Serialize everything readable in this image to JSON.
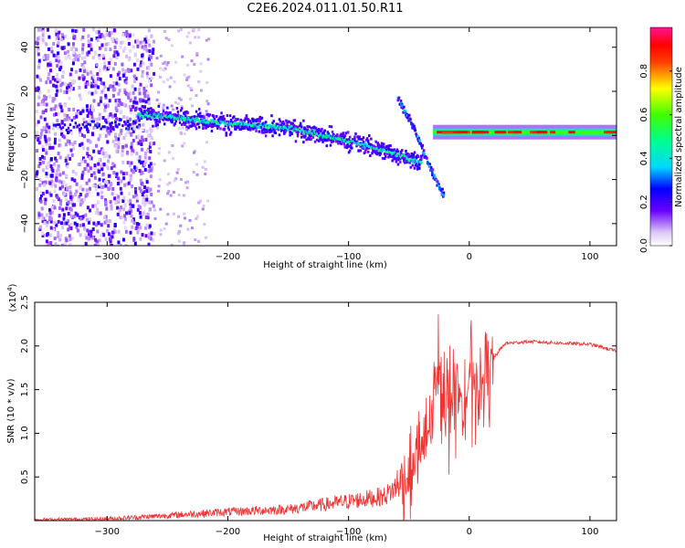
{
  "title": "C2E6.2024.011.01.50.R11",
  "chart_data": [
    {
      "type": "heatmap",
      "xlabel": "Height of straight line (km)",
      "ylabel": "Frequency (Hz)",
      "xlim": [
        -360,
        122
      ],
      "ylim": [
        -50,
        49
      ],
      "xticks": [
        -300,
        -200,
        -100,
        0,
        100
      ],
      "yticks": [
        -40,
        -20,
        0,
        20,
        40
      ],
      "colorbar": {
        "label": "Normalized spectral amplitude",
        "range": [
          0.0,
          1.0
        ],
        "ticks": [
          0.0,
          0.2,
          0.4,
          0.6,
          0.8
        ]
      },
      "features": {
        "noise_region_x": [
          -360,
          -262
        ],
        "main_trace": [
          [
            -275,
            10
          ],
          [
            -250,
            9
          ],
          [
            -200,
            6
          ],
          [
            -150,
            4
          ],
          [
            -100,
            -2
          ],
          [
            -60,
            -8
          ],
          [
            -40,
            -12
          ]
        ],
        "secondary_trace": [
          [
            -60,
            18
          ],
          [
            -45,
            2
          ],
          [
            -35,
            -12
          ],
          [
            -22,
            -27
          ]
        ],
        "strong_line": {
          "x_range": [
            -30,
            122
          ],
          "frequency": 1.5
        }
      }
    },
    {
      "type": "line",
      "xlabel": "Height of straight line (km)",
      "ylabel": "SNR (10 * v/v)",
      "y_multiplier": "(x10^4)",
      "xlim": [
        -360,
        122
      ],
      "ylim": [
        0,
        2.5
      ],
      "xticks": [
        -300,
        -200,
        -100,
        0,
        100
      ],
      "yticks": [
        0.5,
        1.0,
        1.5,
        2.0,
        2.5
      ],
      "series": [
        {
          "color": "#ee3333",
          "points": [
            [
              -360,
              0.01
            ],
            [
              -300,
              0.02
            ],
            [
              -260,
              0.05
            ],
            [
              -200,
              0.1
            ],
            [
              -150,
              0.13
            ],
            [
              -100,
              0.22
            ],
            [
              -70,
              0.28
            ],
            [
              -50,
              0.5
            ],
            [
              -40,
              0.8
            ],
            [
              -32,
              1.05
            ],
            [
              -26,
              1.8
            ],
            [
              -20,
              1.2
            ],
            [
              -10,
              1.4
            ],
            [
              0,
              1.5
            ],
            [
              10,
              1.6
            ],
            [
              20,
              1.85
            ],
            [
              25,
              1.95
            ],
            [
              30,
              2.03
            ],
            [
              50,
              2.05
            ],
            [
              80,
              2.03
            ],
            [
              100,
              2.02
            ],
            [
              122,
              1.94
            ]
          ]
        }
      ]
    }
  ]
}
